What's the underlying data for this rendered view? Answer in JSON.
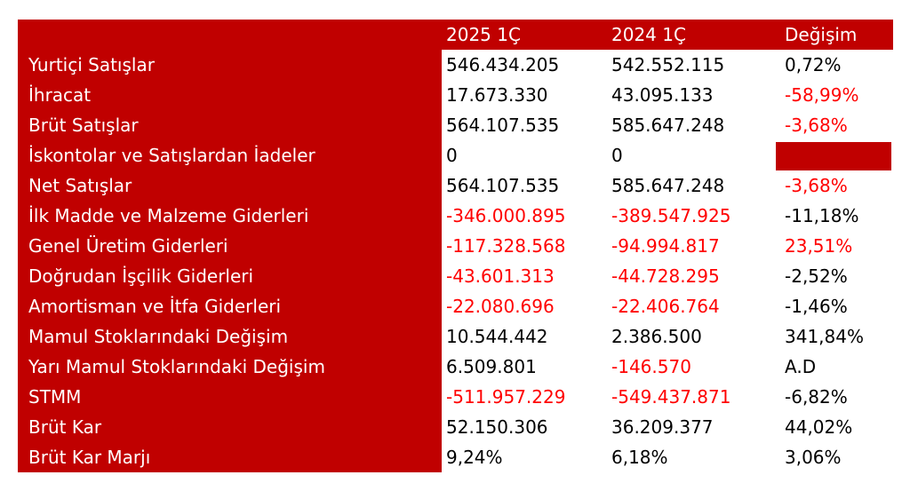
{
  "table": {
    "header": [
      "2025 1Ç",
      "2024 1Ç",
      "Değişim"
    ],
    "rows": [
      {
        "label": "Yurtiçi Satışlar",
        "values": [
          "546.434.205",
          "542.552.115",
          "0,72%"
        ],
        "colors": [
          "#000000",
          "#000000",
          "#000000"
        ]
      },
      {
        "label": "İhracat",
        "values": [
          "17.673.330",
          "43.095.133",
          "-58,99%"
        ],
        "colors": [
          "#000000",
          "#000000",
          "#ff0000"
        ]
      },
      {
        "label": "Brüt Satışlar",
        "values": [
          "564.107.535",
          "585.647.248",
          "-3,68%"
        ],
        "colors": [
          "#000000",
          "#000000",
          "#ff0000"
        ]
      },
      {
        "label": "İskontolar ve Satışlardan İadeler",
        "values": [
          "0",
          "0",
          null
        ],
        "colors": [
          "#000000",
          "#000000",
          "#000000"
        ],
        "fills": [
          null,
          null,
          "#c00000"
        ]
      },
      {
        "label": "Net Satışlar",
        "values": [
          "564.107.535",
          "585.647.248",
          "-3,68%"
        ],
        "colors": [
          "#000000",
          "#000000",
          "#ff0000"
        ]
      },
      {
        "label": "İlk Madde ve Malzeme Giderleri",
        "values": [
          "-346.000.895",
          "-389.547.925",
          "-11,18%"
        ],
        "colors": [
          "#ff0000",
          "#ff0000",
          "#000000"
        ]
      },
      {
        "label": "Genel Üretim Giderleri",
        "values": [
          "-117.328.568",
          "-94.994.817",
          "23,51%"
        ],
        "colors": [
          "#ff0000",
          "#ff0000",
          "#ff0000"
        ]
      },
      {
        "label": "Doğrudan İşçilik Giderleri",
        "values": [
          "-43.601.313",
          "-44.728.295",
          "-2,52%"
        ],
        "colors": [
          "#ff0000",
          "#ff0000",
          "#000000"
        ]
      },
      {
        "label": "Amortisman ve İtfa Giderleri",
        "values": [
          "-22.080.696",
          "-22.406.764",
          "-1,46%"
        ],
        "colors": [
          "#ff0000",
          "#ff0000",
          "#000000"
        ]
      },
      {
        "label": "Mamul Stoklarındaki Değişim",
        "values": [
          "10.544.442",
          "2.386.500",
          "341,84%"
        ],
        "colors": [
          "#000000",
          "#000000",
          "#000000"
        ]
      },
      {
        "label": "Yarı Mamul Stoklarındaki Değişim",
        "values": [
          "6.509.801",
          "-146.570",
          "A.D"
        ],
        "colors": [
          "#000000",
          "#ff0000",
          "#000000"
        ]
      },
      {
        "label": "STMM",
        "values": [
          "-511.957.229",
          "-549.437.871",
          "-6,82%"
        ],
        "colors": [
          "#ff0000",
          "#ff0000",
          "#000000"
        ]
      },
      {
        "label": "Brüt Kar",
        "values": [
          "52.150.306",
          "36.209.377",
          "44,02%"
        ],
        "colors": [
          "#000000",
          "#000000",
          "#000000"
        ]
      },
      {
        "label": "Brüt Kar Marjı",
        "values": [
          "9,24%",
          "6,18%",
          "3,06%"
        ],
        "colors": [
          "#000000",
          "#000000",
          "#000000"
        ]
      }
    ]
  }
}
